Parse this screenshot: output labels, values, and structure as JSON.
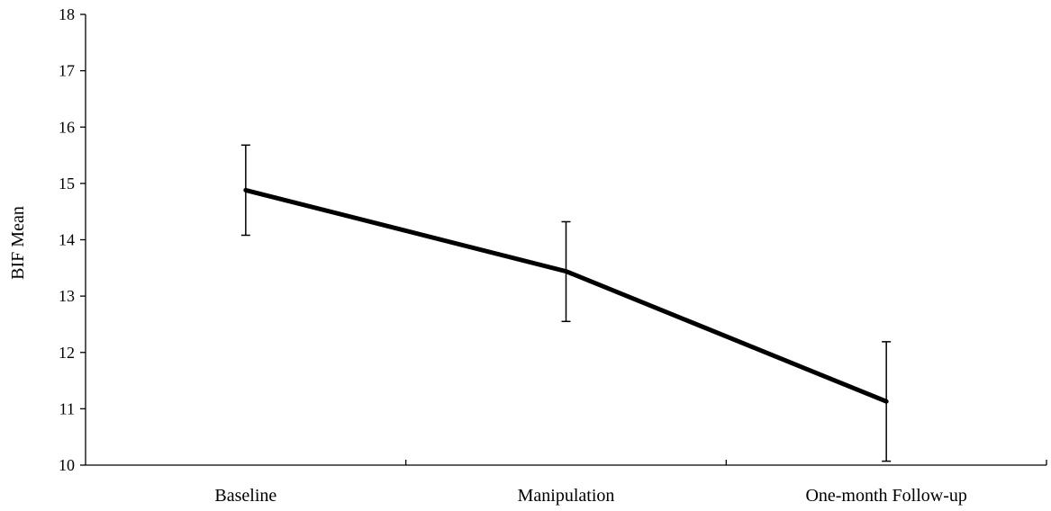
{
  "chart_data": {
    "type": "line",
    "title": "",
    "xlabel": "",
    "ylabel": "BIF Mean",
    "ylim": [
      10,
      18
    ],
    "yticks": [
      10,
      11,
      12,
      13,
      14,
      15,
      16,
      17,
      18
    ],
    "categories": [
      "Baseline",
      "Manipulation",
      "One-month Follow-up"
    ],
    "series": [
      {
        "values": [
          14.88,
          13.44,
          11.13
        ],
        "error_low": [
          14.08,
          12.55,
          10.07
        ],
        "error_high": [
          15.68,
          14.32,
          12.19
        ]
      }
    ],
    "grid": false,
    "legend": "none",
    "line_color": "#000000"
  }
}
